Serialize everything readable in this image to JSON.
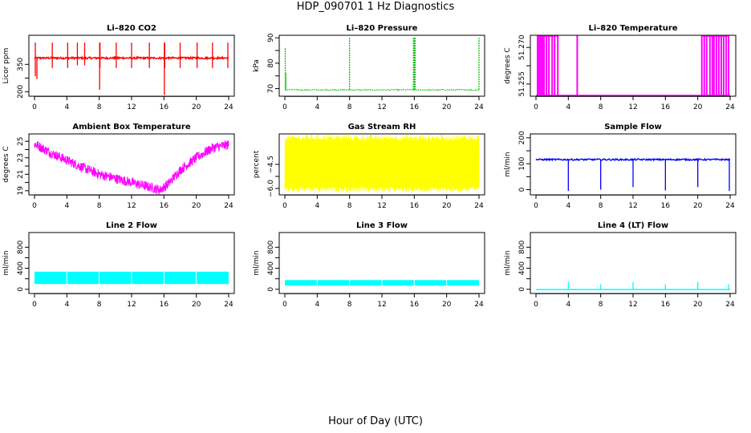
{
  "figure": {
    "title": "HDP_090701  1 Hz Diagnostics",
    "xlabel": "Hour of Day (UTC)"
  },
  "colors": {
    "red": "#ff0000",
    "green": "#00bb00",
    "magenta": "#ff00ff",
    "yellow": "#ffff00",
    "blue": "#0000ff",
    "cyan": "#00ffff"
  },
  "chart_data": [
    {
      "type": "line",
      "title": "Li–820 CO2",
      "ylabel": "Licor ppm",
      "xticks": [
        "0",
        "4",
        "8",
        "12",
        "16",
        "20",
        "24"
      ],
      "xlim": [
        0,
        24
      ],
      "ylim": [
        175,
        510
      ],
      "yticks": [
        200,
        350
      ],
      "ytick_labels": [
        "200",
        "350"
      ],
      "color": "red",
      "series": [
        {
          "name": "Li-820 CO2",
          "base": 385,
          "band": [
            370,
            395
          ],
          "x": [
            0.1,
            0.3,
            2.2,
            4.1,
            5.3,
            6.2,
            8.05,
            8.1,
            10.1,
            12.0,
            14.2,
            16.05,
            16.1,
            18.0,
            20.1,
            22.0,
            23.9
          ],
          "spike_high": [
            470,
            380,
            470,
            470,
            470,
            470,
            470,
            470,
            470,
            470,
            470,
            470,
            470,
            470,
            470,
            470,
            470
          ],
          "spike_low": [
            285,
            270,
            330,
            330,
            345,
            345,
            210,
            330,
            330,
            330,
            330,
            182,
            330,
            330,
            330,
            330,
            330
          ]
        }
      ]
    },
    {
      "type": "line",
      "title": "Li–820 Pressure",
      "ylabel": "kPa",
      "xticks": [
        "0",
        "4",
        "8",
        "12",
        "16",
        "20",
        "24"
      ],
      "xlim": [
        0,
        24
      ],
      "ylim": [
        67,
        91
      ],
      "yticks": [
        70,
        80,
        90
      ],
      "ytick_labels": [
        "70",
        "80",
        "90"
      ],
      "color": "green",
      "series": [
        {
          "name": "Li-820 Pressure",
          "base": 69.5,
          "x": [
            0.05,
            0.15,
            8.0,
            15.9,
            16.0,
            16.1,
            24.0
          ],
          "spike_high": [
            86,
            76,
            90,
            90,
            90,
            90,
            90
          ]
        }
      ]
    },
    {
      "type": "line",
      "title": "Li–820 Temperature",
      "ylabel": "degrees C",
      "xticks": [
        "0",
        "4",
        "8",
        "12",
        "16",
        "20",
        "24"
      ],
      "xlim": [
        0,
        24
      ],
      "ylim": [
        51.25,
        51.275
      ],
      "yticks": [
        51.255,
        51.27
      ],
      "ytick_labels": [
        "51.255",
        "51.270"
      ],
      "color": "magenta",
      "series": [
        {
          "name": "Li-820 Temperature",
          "base": 51.25,
          "high": 51.275,
          "x": [
            0.2,
            0.4,
            0.6,
            0.8,
            1.0,
            1.3,
            1.6,
            2.0,
            2.3,
            2.7,
            5.1,
            20.5,
            20.8,
            21.1,
            21.5,
            21.8,
            22.0,
            22.3,
            22.6,
            22.9,
            23.2,
            23.5,
            23.8
          ]
        }
      ]
    },
    {
      "type": "line",
      "title": "Ambient Box Temperature",
      "ylabel": "degrees C",
      "xticks": [
        "0",
        "4",
        "8",
        "12",
        "16",
        "20",
        "24"
      ],
      "xlim": [
        0,
        24
      ],
      "ylim": [
        18.5,
        25.9
      ],
      "yticks": [
        19,
        21,
        23,
        25
      ],
      "ytick_labels": [
        "19",
        "21",
        "23",
        "25"
      ],
      "color": "magenta",
      "series": [
        {
          "name": "Ambient Box Temperature",
          "x": [
            0,
            2,
            4,
            6,
            8,
            10,
            12,
            14,
            15.5,
            16.5,
            18,
            20,
            22,
            24
          ],
          "y": [
            24.7,
            23.6,
            22.7,
            21.8,
            21.0,
            20.5,
            20.0,
            19.5,
            19.1,
            19.8,
            21.5,
            23.0,
            24.2,
            24.6
          ],
          "noise": 0.6
        }
      ]
    },
    {
      "type": "area",
      "title": "Gas Stream RH",
      "ylabel": "percent",
      "xticks": [
        "0",
        "4",
        "8",
        "12",
        "16",
        "20",
        "24"
      ],
      "xlim": [
        0,
        24
      ],
      "ylim": [
        -6.4,
        -2.6
      ],
      "yticks": [
        -6.0,
        -4.5
      ],
      "ytick_labels": [
        "−6.0",
        "−4.5"
      ],
      "color": "yellow",
      "series": [
        {
          "name": "Gas Stream RH",
          "band": [
            -5.9,
            -3.0
          ],
          "noise": 0.35
        }
      ]
    },
    {
      "type": "line",
      "title": "Sample Flow",
      "ylabel": "ml/min",
      "xticks": [
        "0",
        "4",
        "8",
        "12",
        "16",
        "20",
        "24"
      ],
      "xlim": [
        0,
        24
      ],
      "ylim": [
        -20,
        215
      ],
      "yticks": [
        0,
        100,
        200
      ],
      "ytick_labels": [
        "0",
        "100",
        "200"
      ],
      "color": "blue",
      "series": [
        {
          "name": "Sample Flow",
          "base": 116,
          "x": [
            4.0,
            8.0,
            12.0,
            16.0,
            20.0,
            23.9
          ],
          "spike_low": [
            -5,
            0,
            10,
            -3,
            10,
            -5
          ]
        }
      ]
    },
    {
      "type": "area",
      "title": "Line 2 Flow",
      "ylabel": "ml/min",
      "xticks": [
        "0",
        "4",
        "8",
        "12",
        "16",
        "20",
        "24"
      ],
      "xlim": [
        0,
        24
      ],
      "ylim": [
        -80,
        1080
      ],
      "yticks": [
        0,
        400,
        800
      ],
      "ytick_labels": [
        "0",
        "400",
        "800"
      ],
      "color": "cyan",
      "series": [
        {
          "name": "Line 2 Flow",
          "band": [
            100,
            335
          ],
          "gaps": [
            4.0,
            8.0,
            12.0,
            16.0,
            20.0
          ]
        }
      ]
    },
    {
      "type": "area",
      "title": "Line 3 Flow",
      "ylabel": "ml/min",
      "xticks": [
        "0",
        "4",
        "8",
        "12",
        "16",
        "20",
        "24"
      ],
      "xlim": [
        0,
        24
      ],
      "ylim": [
        -80,
        1080
      ],
      "yticks": [
        0,
        400,
        800
      ],
      "ytick_labels": [
        "0",
        "400",
        "800"
      ],
      "color": "cyan",
      "series": [
        {
          "name": "Line 3 Flow",
          "band": [
            70,
            175
          ],
          "gaps": [
            4.0,
            8.0,
            12.0,
            16.0,
            20.0
          ]
        }
      ]
    },
    {
      "type": "line",
      "title": "Line 4 (LT) Flow",
      "ylabel": "ml/min",
      "xticks": [
        "0",
        "4",
        "8",
        "12",
        "16",
        "20",
        "24"
      ],
      "xlim": [
        0,
        24
      ],
      "ylim": [
        -80,
        1080
      ],
      "yticks": [
        0,
        400,
        800
      ],
      "ytick_labels": [
        "0",
        "400",
        "800"
      ],
      "color": "cyan",
      "series": [
        {
          "name": "Line 4 (LT) Flow",
          "base": -5,
          "x": [
            4.0,
            8.0,
            12.0,
            16.0,
            20.0,
            23.8
          ],
          "spike_high": [
            140,
            95,
            140,
            95,
            140,
            95
          ]
        }
      ]
    }
  ]
}
